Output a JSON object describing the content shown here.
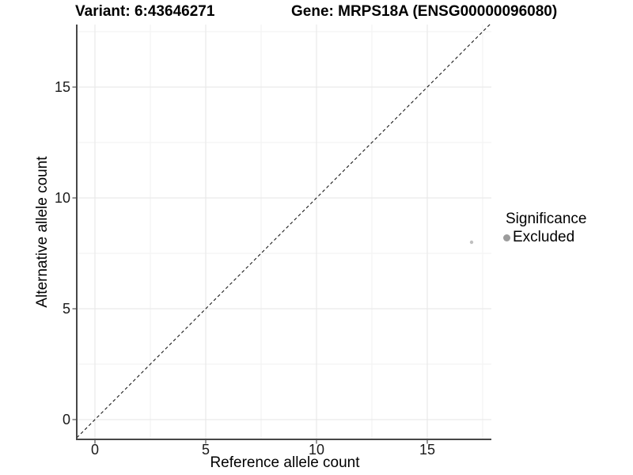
{
  "header": {
    "variant_title": "Variant: 6:43646271",
    "gene_title": "Gene: MRPS18A (ENSG00000096080)"
  },
  "chart_data": {
    "type": "scatter",
    "points": [
      {
        "x": 17,
        "y": 8,
        "series": "Excluded",
        "color": "#c0c0c0",
        "radius": 2.2
      }
    ],
    "xlabel": "Reference allele count",
    "ylabel": "Alternative allele count",
    "xlim": [
      -0.85,
      17.9
    ],
    "ylim": [
      -0.9,
      17.85
    ],
    "x_ticks": [
      0,
      5,
      10,
      15
    ],
    "y_ticks": [
      0,
      5,
      10,
      15
    ],
    "x_minor_ticks": [
      2.5,
      7.5,
      12.5,
      17.5
    ],
    "y_minor_ticks": [
      2.5,
      7.5,
      12.5,
      17.5
    ],
    "grid": "major+minor",
    "reference_line": {
      "type": "identity",
      "slope": 1,
      "intercept": 0,
      "style": "dashed",
      "color": "#1a1a1a"
    },
    "legend": {
      "title": "Significance",
      "position": "right",
      "entries": [
        {
          "label": "Excluded",
          "color": "#9c9c9c"
        }
      ]
    }
  },
  "colors": {
    "background": "#ffffff",
    "grid_major": "#e6e6e6",
    "grid_minor": "#f2f2f2",
    "axis_line": "#474747",
    "tick_mark": "#333333",
    "tick_label": "#1a1a1a",
    "text": "#000000"
  }
}
